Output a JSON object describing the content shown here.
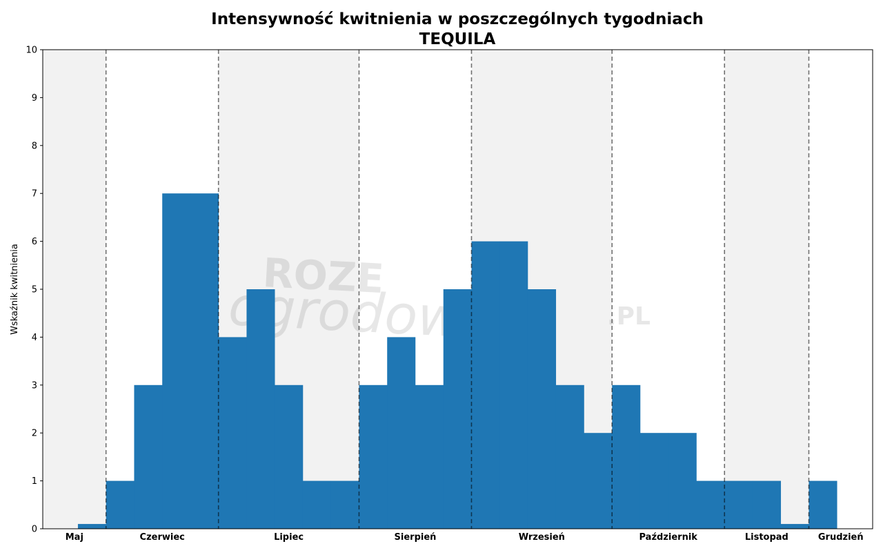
{
  "chart_data": {
    "type": "bar",
    "title": "Intensywność kwitnienia w poszczególnych tygodniach",
    "subtitle": "TEQUILA",
    "xlabel": "",
    "ylabel": "Wskaźnik kwitnienia",
    "ylim": [
      0,
      10
    ],
    "yticks": [
      "0",
      "1",
      "2",
      "3",
      "4",
      "5",
      "6",
      "7",
      "8",
      "9",
      "10"
    ],
    "xlim": [
      -1.25,
      28.27
    ],
    "values": [
      0.1,
      1,
      3,
      7,
      7,
      4,
      5,
      3,
      1,
      1,
      3,
      4,
      3,
      5,
      6,
      6,
      5,
      3,
      2,
      3,
      2,
      2,
      1,
      1,
      1,
      0.1,
      1
    ],
    "bar_color": "#1f77b4",
    "months": [
      {
        "label": "Maj",
        "start": -1.25,
        "end": 1,
        "shaded": true
      },
      {
        "label": "Czerwiec",
        "start": 1,
        "end": 5,
        "shaded": false
      },
      {
        "label": "Lipiec",
        "start": 5,
        "end": 10,
        "shaded": true
      },
      {
        "label": "Sierpień",
        "start": 10,
        "end": 14,
        "shaded": false
      },
      {
        "label": "Wrzesień",
        "start": 14,
        "end": 19,
        "shaded": true
      },
      {
        "label": "Październik",
        "start": 19,
        "end": 23,
        "shaded": false
      },
      {
        "label": "Listopad",
        "start": 23,
        "end": 26,
        "shaded": true
      },
      {
        "label": "Grudzień",
        "start": 26,
        "end": 28.27,
        "shaded": false
      }
    ],
    "shade_color": "#f2f2f2",
    "grid": false,
    "watermark": {
      "line1": "ROZE",
      "line2": "ogrodowe",
      "suffix": ".PL"
    }
  }
}
